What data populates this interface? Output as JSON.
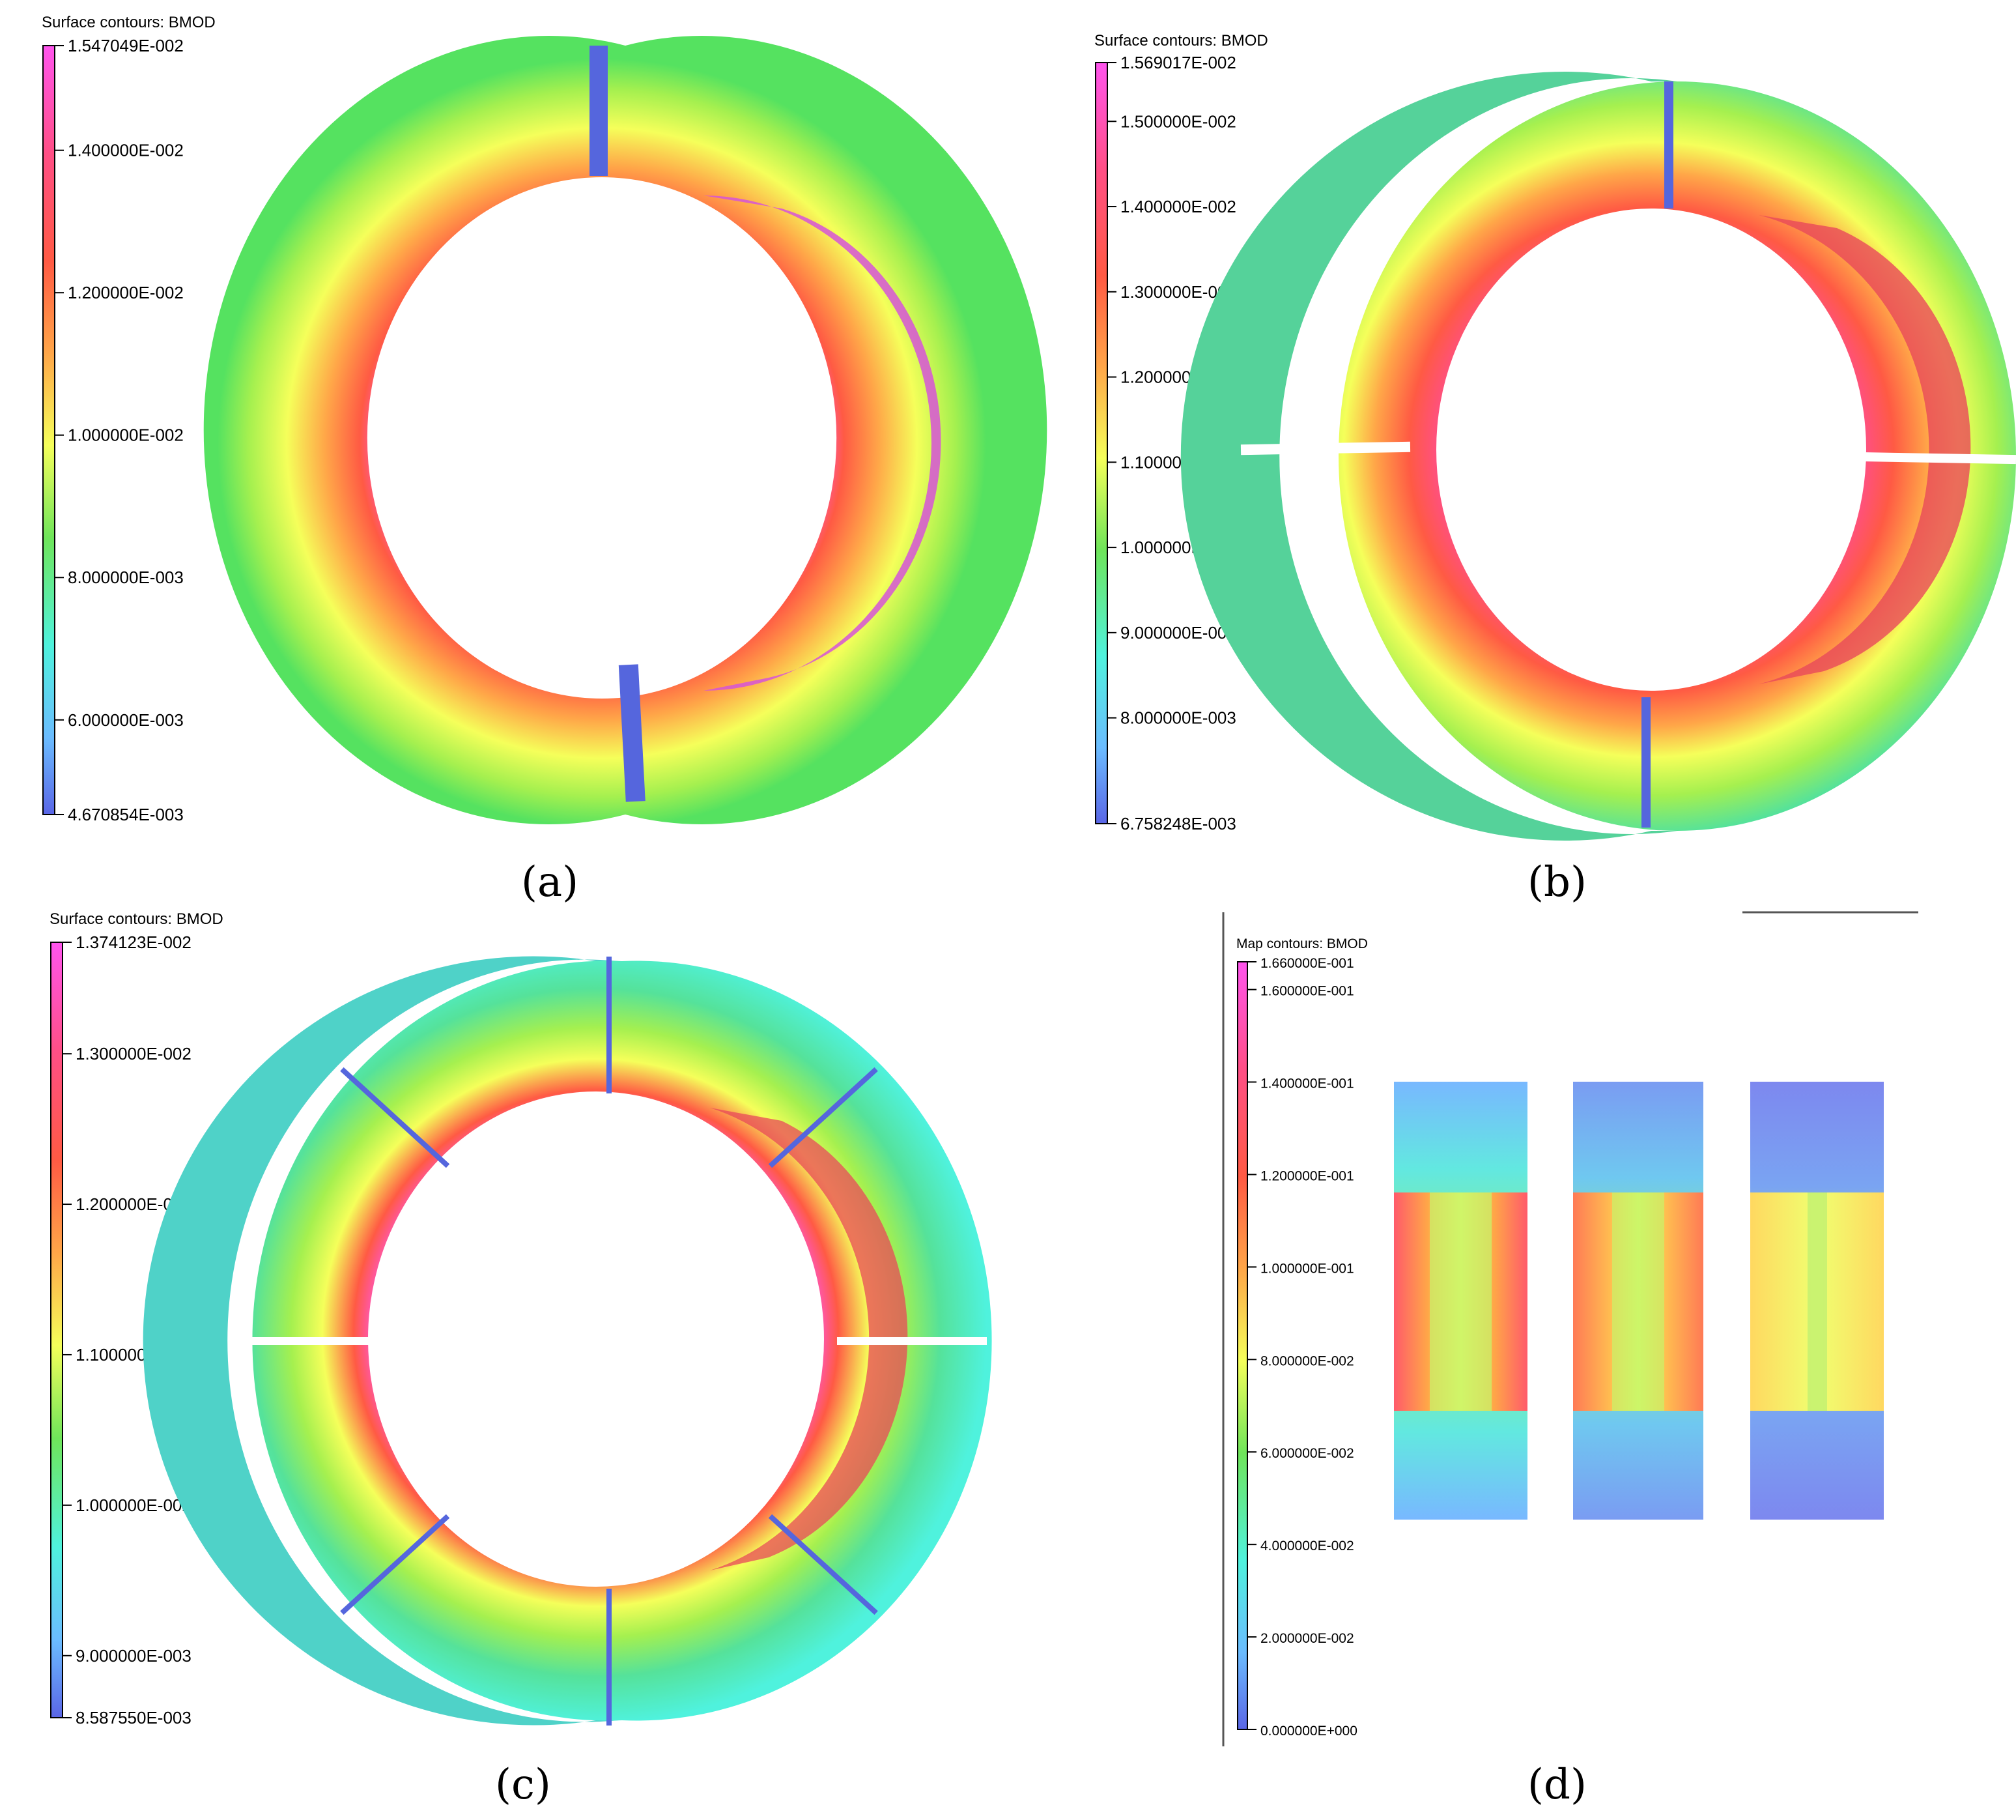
{
  "palette": {
    "magenta": "#ff55ee",
    "pink": "#ff4f86",
    "red": "#ff5a44",
    "orange": "#ffa648",
    "yellow": "#f5ff5a",
    "lime": "#a5f04f",
    "green": "#55e260",
    "cyan": "#4ff2dd",
    "lightblue": "#6bbcff",
    "blue": "#5a66e6"
  },
  "panels": [
    {
      "id": "a",
      "caption": "(a)",
      "legend": {
        "title": "Surface contours: BMOD",
        "ticks": [
          "1.547049E-002",
          "1.400000E-002",
          "1.200000E-002",
          "1.000000E-002",
          "8.000000E-003",
          "6.000000E-003",
          "4.670854E-003"
        ],
        "tick_values": [
          0.01547049,
          0.014,
          0.012,
          0.01,
          0.008,
          0.006,
          0.004670854
        ]
      },
      "ring": {
        "segments": 2,
        "gap_angles_deg": [
          90,
          270
        ]
      }
    },
    {
      "id": "b",
      "caption": "(b)",
      "legend": {
        "title": "Surface contours: BMOD",
        "ticks": [
          "1.569017E-002",
          "1.500000E-002",
          "1.400000E-002",
          "1.300000E-002",
          "1.200000E-002",
          "1.100000E-002",
          "1.000000E-002",
          "9.000000E-003",
          "8.000000E-003",
          "6.758248E-003"
        ],
        "tick_values": [
          0.01569017,
          0.015,
          0.014,
          0.013,
          0.012,
          0.011,
          0.01,
          0.009,
          0.008,
          0.006758248
        ]
      },
      "ring": {
        "segments": 4,
        "gap_angles_deg": [
          0,
          90,
          180,
          270
        ]
      }
    },
    {
      "id": "c",
      "caption": "(c)",
      "legend": {
        "title": "Surface contours: BMOD",
        "ticks": [
          "1.374123E-002",
          "1.300000E-002",
          "1.200000E-002",
          "1.100000E-002",
          "1.000000E-002",
          "9.000000E-003",
          "8.587550E-003"
        ],
        "tick_values": [
          0.01374123,
          0.013,
          0.012,
          0.011,
          0.01,
          0.009,
          0.00858755
        ]
      },
      "ring": {
        "segments": 8,
        "gap_angles_deg": [
          0,
          45,
          90,
          135,
          180,
          225,
          270,
          315
        ]
      }
    },
    {
      "id": "d",
      "caption": "(d)",
      "legend": {
        "title": "Map contours: BMOD",
        "ticks": [
          "1.660000E-001",
          "1.600000E-001",
          "1.400000E-001",
          "1.200000E-001",
          "1.000000E-001",
          "8.000000E-002",
          "6.000000E-002",
          "4.000000E-002",
          "2.000000E-002",
          "0.000000E+000"
        ],
        "tick_values": [
          0.166,
          0.16,
          0.14,
          0.12,
          0.1,
          0.08,
          0.06,
          0.04,
          0.02,
          0.0
        ]
      },
      "cross_sections": 3
    }
  ]
}
